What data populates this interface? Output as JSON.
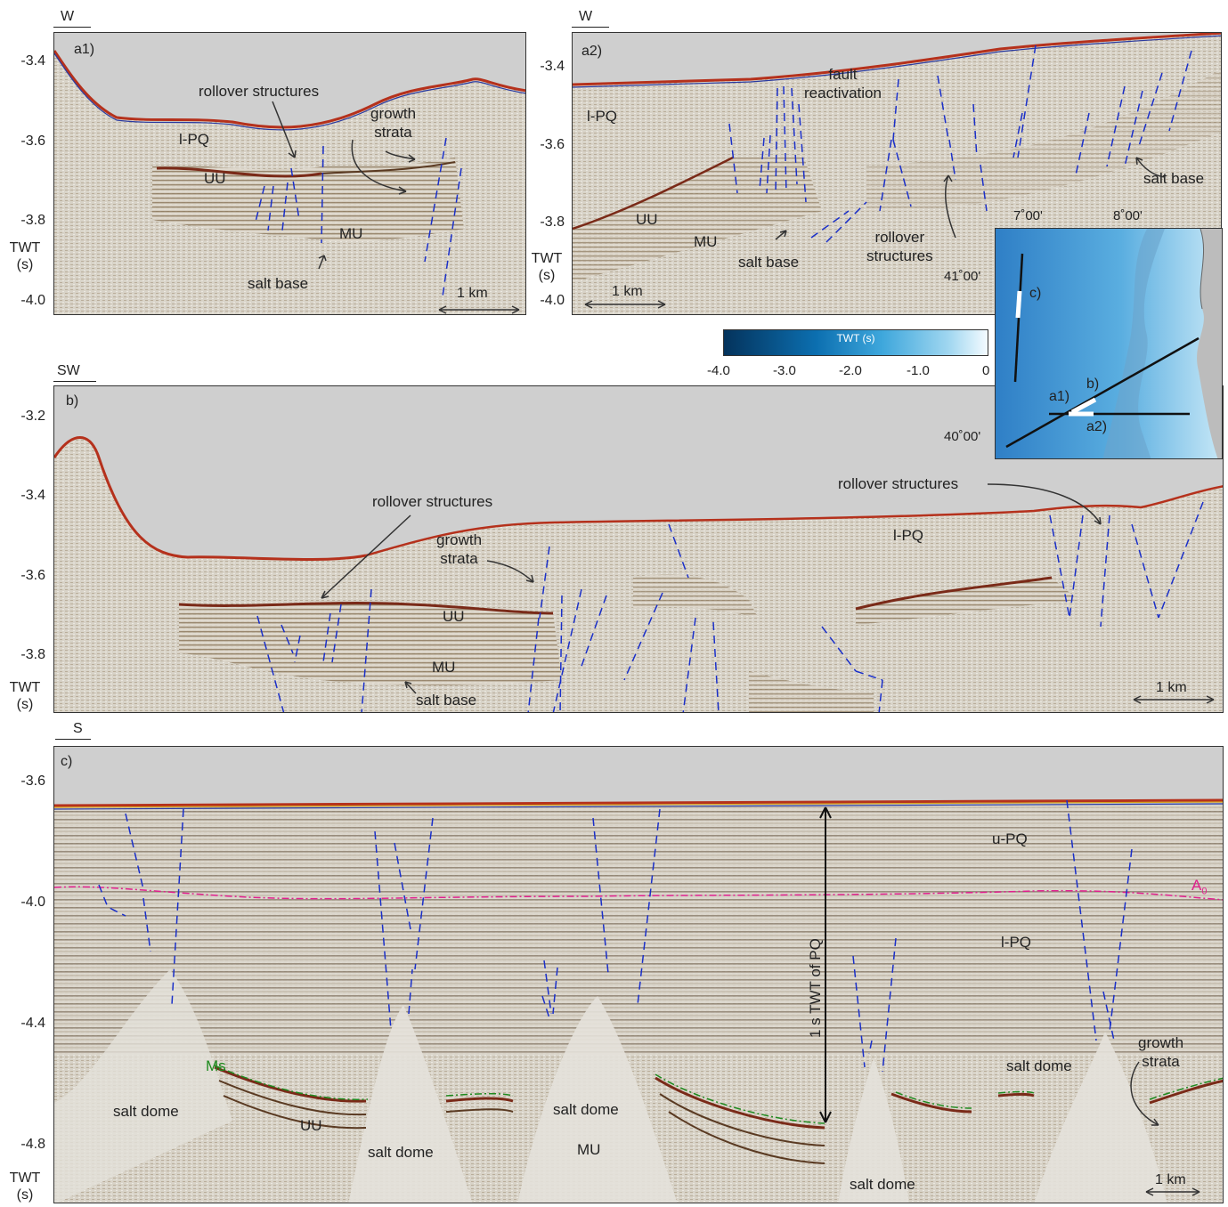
{
  "axis_label": {
    "line1": "TWT",
    "line2": "(s)"
  },
  "scale_bar": "1 km",
  "panel_a1": {
    "direction": "W",
    "label": "a1)",
    "ticks": [
      "-3.4",
      "-3.6",
      "-3.8",
      "-4.0"
    ],
    "annotations": {
      "rollover": "rollover structures",
      "growth1": "growth",
      "growth2": "strata",
      "lpq": "l-PQ",
      "uu": "UU",
      "mu": "MU",
      "salt_base": "salt base"
    }
  },
  "panel_a2": {
    "direction": "W",
    "label": "a2)",
    "ticks": [
      "-3.4",
      "-3.6",
      "-3.8",
      "-4.0"
    ],
    "annotations": {
      "fault1": "fault",
      "fault2": "reactivation",
      "lpq": "l-PQ",
      "uu": "UU",
      "mu": "MU",
      "salt_base1": "salt base",
      "salt_base2": "salt base",
      "rollover1": "rollover",
      "rollover2": "structures"
    }
  },
  "panel_b": {
    "direction": "SW",
    "label": "b)",
    "ticks": [
      "-3.2",
      "-3.4",
      "-3.6",
      "-3.8"
    ],
    "annotations": {
      "rollover1": "rollover structures",
      "rollover2": "rollover structures",
      "growth1": "growth",
      "growth2": "strata",
      "lpq": "l-PQ",
      "uu": "UU",
      "mu": "MU",
      "salt_base": "salt base"
    }
  },
  "panel_c": {
    "direction": "S",
    "label": "c)",
    "ticks": [
      "-3.6",
      "-4.0",
      "-4.4",
      "-4.8"
    ],
    "annotations": {
      "upq": "u-PQ",
      "a0": "A",
      "a0_sub": "0",
      "lpq": "l-PQ",
      "ms": "Ms",
      "salt_dome_1": "salt dome",
      "salt_dome_2": "salt dome",
      "salt_dome_3": "salt dome",
      "salt_dome_4": "salt dome",
      "salt_dome_5": "salt dome",
      "uu": "UU",
      "mu": "MU",
      "growth1": "growth",
      "growth2": "strata",
      "vertical_label": "1 s TWT of PQ"
    },
    "colors": {
      "a0": "#e0208e",
      "ms": "#1f8a1f"
    }
  },
  "colorbar": {
    "title": "TWT (s)",
    "ticks": [
      "-4.0",
      "-3.0",
      "-2.0",
      "-1.0",
      "0"
    ]
  },
  "map_inset": {
    "lon_labels": [
      "7˚00'",
      "8˚00'"
    ],
    "lat_labels": [
      "41˚00'",
      "40˚00'"
    ],
    "profile_labels": {
      "c": "c)",
      "a1": "a1)",
      "b": "b)",
      "a2": "a2)"
    }
  },
  "colors": {
    "fault": "#1a2fc9",
    "seafloor_red": "#b5311c",
    "sky": "#cfcfcf",
    "seismic_bg": "#d9d5cc"
  }
}
